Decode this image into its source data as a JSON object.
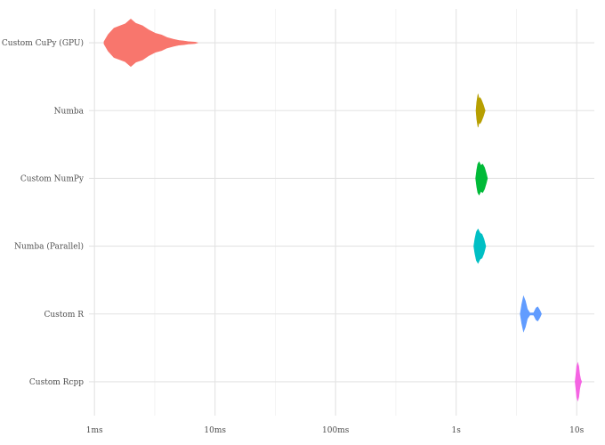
{
  "chart_data": {
    "type": "violin",
    "title": "",
    "xlabel": "",
    "ylabel": "",
    "x_scale": "log",
    "x_unit": "seconds",
    "xlim": [
      0.0009,
      14
    ],
    "x_ticks": [
      {
        "value": 0.001,
        "label": "1ms"
      },
      {
        "value": 0.01,
        "label": "10ms"
      },
      {
        "value": 0.1,
        "label": "100ms"
      },
      {
        "value": 1,
        "label": "1s"
      },
      {
        "value": 10,
        "label": "10s"
      }
    ],
    "grid": true,
    "legend": "none",
    "series": [
      {
        "name": "Custom CuPy (GPU)",
        "color": "#F8766D",
        "profile": [
          [
            0.0012,
            0.05
          ],
          [
            0.0013,
            0.35
          ],
          [
            0.00145,
            0.62
          ],
          [
            0.0016,
            0.7
          ],
          [
            0.0018,
            0.8
          ],
          [
            0.002,
            1.0
          ],
          [
            0.0022,
            0.82
          ],
          [
            0.0025,
            0.72
          ],
          [
            0.0028,
            0.55
          ],
          [
            0.0032,
            0.4
          ],
          [
            0.0036,
            0.33
          ],
          [
            0.004,
            0.22
          ],
          [
            0.0045,
            0.15
          ],
          [
            0.005,
            0.1
          ],
          [
            0.0055,
            0.08
          ],
          [
            0.006,
            0.05
          ],
          [
            0.0068,
            0.03
          ],
          [
            0.0072,
            0.0
          ]
        ]
      },
      {
        "name": "Numba",
        "color": "#B79F00",
        "profile": [
          [
            1.46,
            0.0
          ],
          [
            1.48,
            0.35
          ],
          [
            1.5,
            0.55
          ],
          [
            1.52,
            0.7
          ],
          [
            1.55,
            0.5
          ],
          [
            1.58,
            0.55
          ],
          [
            1.62,
            0.45
          ],
          [
            1.68,
            0.25
          ],
          [
            1.74,
            0.0
          ]
        ]
      },
      {
        "name": "Custom NumPy",
        "color": "#00BA38",
        "profile": [
          [
            1.45,
            0.0
          ],
          [
            1.48,
            0.35
          ],
          [
            1.51,
            0.6
          ],
          [
            1.55,
            0.7
          ],
          [
            1.6,
            0.55
          ],
          [
            1.66,
            0.6
          ],
          [
            1.72,
            0.45
          ],
          [
            1.78,
            0.2
          ],
          [
            1.82,
            0.0
          ]
        ]
      },
      {
        "name": "Numba (Parallel)",
        "color": "#00BFC4",
        "profile": [
          [
            1.4,
            0.0
          ],
          [
            1.43,
            0.3
          ],
          [
            1.47,
            0.6
          ],
          [
            1.52,
            0.72
          ],
          [
            1.58,
            0.55
          ],
          [
            1.64,
            0.5
          ],
          [
            1.7,
            0.3
          ],
          [
            1.76,
            0.0
          ]
        ]
      },
      {
        "name": "Custom R",
        "color": "#619CFF",
        "profile": [
          [
            3.4,
            0.0
          ],
          [
            3.5,
            0.4
          ],
          [
            3.62,
            0.75
          ],
          [
            3.75,
            0.55
          ],
          [
            3.9,
            0.2
          ],
          [
            4.1,
            0.04
          ],
          [
            4.4,
            0.05
          ],
          [
            4.6,
            0.25
          ],
          [
            4.75,
            0.3
          ],
          [
            4.95,
            0.15
          ],
          [
            5.1,
            0.0
          ]
        ]
      },
      {
        "name": "Custom Rcpp",
        "color": "#F564E3",
        "profile": [
          [
            9.7,
            0.0
          ],
          [
            9.85,
            0.3
          ],
          [
            10.0,
            0.65
          ],
          [
            10.2,
            0.8
          ],
          [
            10.4,
            0.65
          ],
          [
            10.6,
            0.3
          ],
          [
            10.8,
            0.1
          ],
          [
            11.0,
            0.0
          ]
        ]
      }
    ]
  }
}
